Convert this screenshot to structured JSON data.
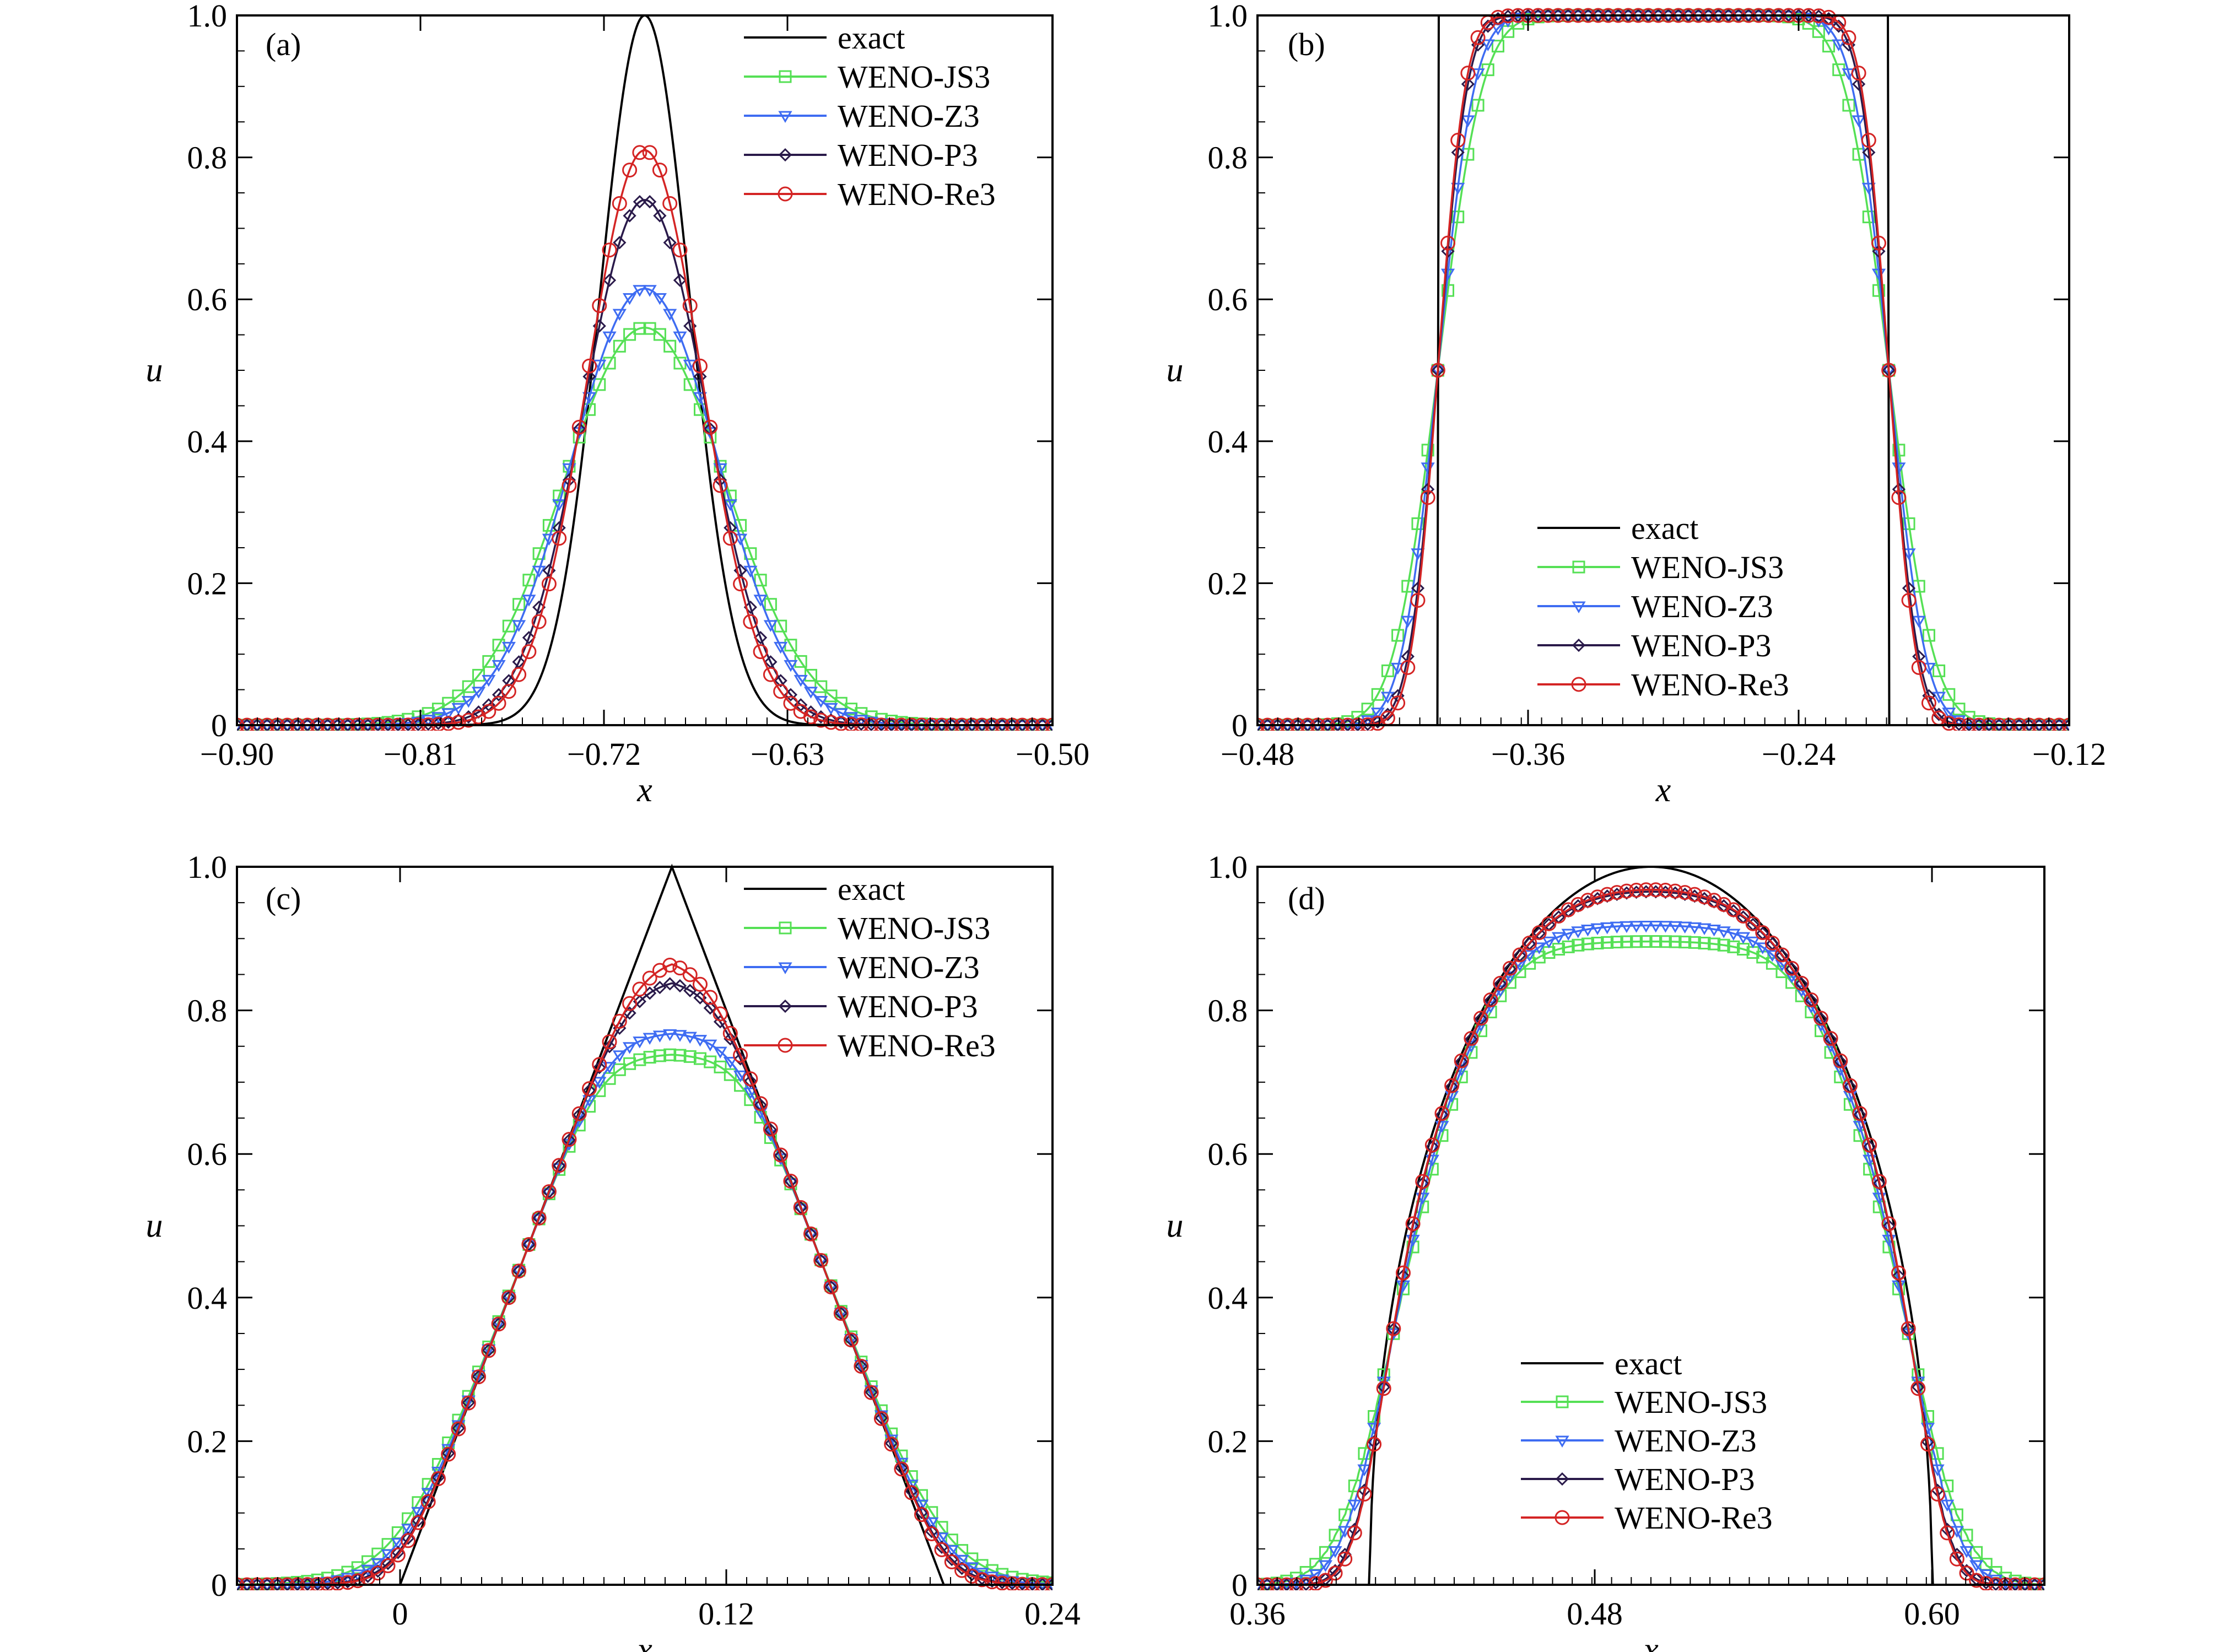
{
  "colors": {
    "exact": "#000000",
    "WENO-JS3": "#55e055",
    "WENO-Z3": "#3e6cf2",
    "WENO-P3": "#2a1a4a",
    "WENO-Re3": "#d42424"
  },
  "series_styles": {
    "exact": "none",
    "WENO-JS3": "square",
    "WENO-Z3": "triangle-down",
    "WENO-P3": "diamond",
    "WENO-Re3": "circle"
  },
  "chart_data": [
    {
      "type": "line",
      "panel_label": "(a)",
      "xlabel": "x",
      "ylabel": "u",
      "xlim": [
        -0.9,
        -0.5
      ],
      "ylim": [
        0,
        1.0
      ],
      "xticks": [
        -0.9,
        -0.81,
        -0.72,
        -0.63,
        -0.5
      ],
      "xtick_labels": [
        "−0.90",
        "−0.81",
        "−0.72",
        "−0.63",
        "−0.50"
      ],
      "yticks": [
        0,
        0.2,
        0.4,
        0.6,
        0.8,
        1.0
      ],
      "ytick_labels": [
        "0",
        "0.2",
        "0.4",
        "0.6",
        "0.8",
        "1.0"
      ],
      "legend": "top-right",
      "series": [
        {
          "name": "exact",
          "shape": "gauss",
          "center": -0.7,
          "peak": 1.0,
          "sigma": 0.022,
          "xmin": -0.9,
          "xmax": -0.5
        },
        {
          "name": "WENO-JS3",
          "shape": "gauss",
          "center": -0.7,
          "peak": 0.56,
          "sigma": 0.04,
          "xmin": -0.9,
          "xmax": -0.5
        },
        {
          "name": "WENO-Z3",
          "shape": "gauss",
          "center": -0.7,
          "peak": 0.615,
          "sigma": 0.036,
          "xmin": -0.9,
          "xmax": -0.5
        },
        {
          "name": "WENO-P3",
          "shape": "gauss",
          "center": -0.7,
          "peak": 0.74,
          "sigma": 0.03,
          "xmin": -0.9,
          "xmax": -0.5
        },
        {
          "name": "WENO-Re3",
          "shape": "gauss",
          "center": -0.7,
          "peak": 0.81,
          "sigma": 0.028,
          "xmin": -0.9,
          "xmax": -0.5
        }
      ]
    },
    {
      "type": "line",
      "panel_label": "(b)",
      "xlabel": "x",
      "ylabel": "u",
      "xlim": [
        -0.48,
        -0.12
      ],
      "ylim": [
        0,
        1.0
      ],
      "xticks": [
        -0.48,
        -0.36,
        -0.24,
        -0.12
      ],
      "xtick_labels": [
        "−0.48",
        "−0.36",
        "−0.24",
        "−0.12"
      ],
      "yticks": [
        0,
        0.2,
        0.4,
        0.6,
        0.8,
        1.0
      ],
      "ytick_labels": [
        "0",
        "0.2",
        "0.4",
        "0.6",
        "0.8",
        "1.0"
      ],
      "legend": "bottom-center",
      "series": [
        {
          "name": "exact",
          "shape": "square",
          "left": -0.4,
          "right": -0.2,
          "peak": 1.0,
          "xmin": -0.48,
          "xmax": -0.12
        },
        {
          "name": "WENO-JS3",
          "shape": "smooth-square",
          "left": -0.4,
          "right": -0.2,
          "peak": 1.0,
          "width": 0.022,
          "xmin": -0.48,
          "xmax": -0.12
        },
        {
          "name": "WENO-Z3",
          "shape": "smooth-square",
          "left": -0.4,
          "right": -0.2,
          "peak": 1.0,
          "width": 0.018,
          "xmin": -0.48,
          "xmax": -0.12
        },
        {
          "name": "WENO-P3",
          "shape": "smooth-square",
          "left": -0.4,
          "right": -0.2,
          "peak": 1.0,
          "width": 0.0145,
          "xmin": -0.48,
          "xmax": -0.12
        },
        {
          "name": "WENO-Re3",
          "shape": "smooth-square",
          "left": -0.4,
          "right": -0.2,
          "peak": 1.0,
          "width": 0.0135,
          "xmin": -0.48,
          "xmax": -0.12
        }
      ]
    },
    {
      "type": "line",
      "panel_label": "(c)",
      "xlabel": "x",
      "ylabel": "u",
      "xlim": [
        -0.06,
        0.24
      ],
      "ylim": [
        0,
        1.0
      ],
      "xticks": [
        0,
        0.12,
        0.24
      ],
      "xtick_labels": [
        "0",
        "0.12",
        "0.24"
      ],
      "yticks": [
        0,
        0.2,
        0.4,
        0.6,
        0.8,
        1.0
      ],
      "ytick_labels": [
        "0",
        "0.2",
        "0.4",
        "0.6",
        "0.8",
        "1.0"
      ],
      "legend": "top-right",
      "series": [
        {
          "name": "exact",
          "shape": "triangle",
          "left": 0.0,
          "center": 0.1,
          "right": 0.2,
          "peak": 1.0,
          "xmin": -0.06,
          "xmax": 0.24
        },
        {
          "name": "WENO-JS3",
          "shape": "smooth-triangle",
          "left": 0.0,
          "center": 0.1,
          "right": 0.2,
          "peak": 1.0,
          "cap": 0.74,
          "width": 0.011,
          "xmin": -0.06,
          "xmax": 0.24
        },
        {
          "name": "WENO-Z3",
          "shape": "smooth-triangle",
          "left": 0.0,
          "center": 0.1,
          "right": 0.2,
          "peak": 1.0,
          "cap": 0.77,
          "width": 0.009,
          "xmin": -0.06,
          "xmax": 0.24
        },
        {
          "name": "WENO-P3",
          "shape": "smooth-triangle",
          "left": 0.0,
          "center": 0.1,
          "right": 0.2,
          "peak": 1.0,
          "cap": 0.845,
          "width": 0.007,
          "xmin": -0.06,
          "xmax": 0.24
        },
        {
          "name": "WENO-Re3",
          "shape": "smooth-triangle",
          "left": 0.0,
          "center": 0.1,
          "right": 0.2,
          "peak": 1.0,
          "cap": 0.875,
          "width": 0.0065,
          "xmin": -0.06,
          "xmax": 0.24
        }
      ]
    },
    {
      "type": "line",
      "panel_label": "(d)",
      "xlabel": "x",
      "ylabel": "u",
      "xlim": [
        0.36,
        0.64
      ],
      "ylim": [
        0,
        1.0
      ],
      "xticks": [
        0.36,
        0.48,
        0.6
      ],
      "xtick_labels": [
        "0.36",
        "0.48",
        "0.60"
      ],
      "yticks": [
        0,
        0.2,
        0.4,
        0.6,
        0.8,
        1.0
      ],
      "ytick_labels": [
        "0",
        "0.2",
        "0.4",
        "0.6",
        "0.8",
        "1.0"
      ],
      "legend": "bottom-center",
      "series": [
        {
          "name": "exact",
          "shape": "ellipse",
          "left": 0.4,
          "right": 0.6,
          "peak": 1.0,
          "xmin": 0.36,
          "xmax": 0.64
        },
        {
          "name": "WENO-JS3",
          "shape": "smooth-ellipse",
          "left": 0.4,
          "right": 0.6,
          "peak": 1.0,
          "cap": 0.9,
          "width": 0.009,
          "xmin": 0.36,
          "xmax": 0.64
        },
        {
          "name": "WENO-Z3",
          "shape": "smooth-ellipse",
          "left": 0.4,
          "right": 0.6,
          "peak": 1.0,
          "cap": 0.925,
          "width": 0.0075,
          "xmin": 0.36,
          "xmax": 0.64
        },
        {
          "name": "WENO-P3",
          "shape": "smooth-ellipse",
          "left": 0.4,
          "right": 0.6,
          "peak": 1.0,
          "cap": 0.99,
          "width": 0.0055,
          "xmin": 0.36,
          "xmax": 0.64
        },
        {
          "name": "WENO-Re3",
          "shape": "smooth-ellipse",
          "left": 0.4,
          "right": 0.6,
          "peak": 1.0,
          "cap": 0.995,
          "width": 0.0052,
          "xmin": 0.36,
          "xmax": 0.64
        }
      ]
    }
  ]
}
